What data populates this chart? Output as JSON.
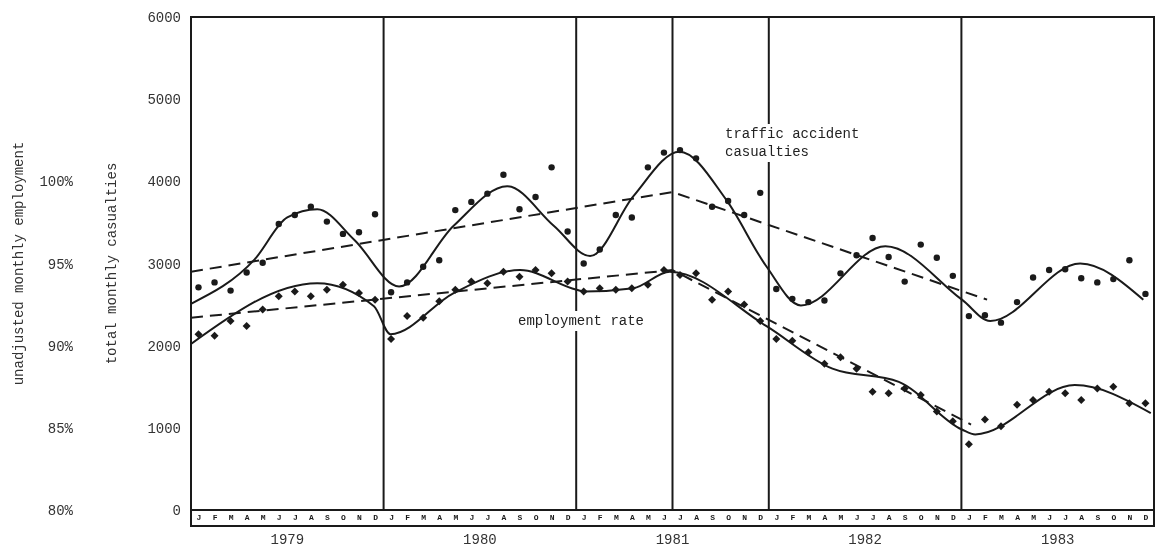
{
  "chart_data": {
    "type": "scatter",
    "ylabel": "total monthly casualties",
    "y2label": "unadjusted monthly employment",
    "x": [
      "1979-01-15",
      "1979-02-15",
      "1979-03-15",
      "1979-04-15",
      "1979-05-15",
      "1979-06-15",
      "1979-07-15",
      "1979-08-15",
      "1979-09-15",
      "1979-10-15",
      "1979-11-15",
      "1979-12-15",
      "1980-01-15",
      "1980-02-15",
      "1980-03-15",
      "1980-04-15",
      "1980-05-15",
      "1980-06-15",
      "1980-07-15",
      "1980-08-15",
      "1980-09-15",
      "1980-10-15",
      "1980-11-15",
      "1980-12-15",
      "1981-01-15",
      "1981-02-15",
      "1981-03-15",
      "1981-04-15",
      "1981-05-15",
      "1981-06-15",
      "1981-07-15",
      "1981-08-15",
      "1981-09-15",
      "1981-10-15",
      "1981-11-15",
      "1981-12-15",
      "1982-01-15",
      "1982-02-15",
      "1982-03-15",
      "1982-04-15",
      "1982-05-15",
      "1982-06-15",
      "1982-07-15",
      "1982-08-15",
      "1982-09-15",
      "1982-10-15",
      "1982-11-15",
      "1982-12-15",
      "1983-01-15",
      "1983-02-15",
      "1983-03-15",
      "1983-04-15",
      "1983-05-15",
      "1983-06-15",
      "1983-07-15",
      "1983-08-15",
      "1983-09-15",
      "1983-10-15",
      "1983-11-15",
      "1983-12-15"
    ],
    "xlim": [
      "1979-01-01",
      "1984-01-01"
    ],
    "xticks": [
      {
        "value": "1979-07-01",
        "label": "1979"
      },
      {
        "value": "1980-07-01",
        "label": "1980"
      },
      {
        "value": "1981-07-01",
        "label": "1981"
      },
      {
        "value": "1982-07-01",
        "label": "1982"
      },
      {
        "value": "1983-07-01",
        "label": "1983"
      }
    ],
    "ylim": [
      0,
      6000
    ],
    "yticks": [
      0,
      1000,
      2000,
      3000,
      4000,
      5000,
      6000
    ],
    "y2lim": [
      80,
      110
    ],
    "y2ticks": [
      {
        "value": 80,
        "label": "80%"
      },
      {
        "value": 85,
        "label": "85%"
      },
      {
        "value": 90,
        "label": "90%"
      },
      {
        "value": 95,
        "label": "95%"
      },
      {
        "value": 100,
        "label": "100%"
      }
    ],
    "series": [
      {
        "marker": "circle",
        "color": "#1a1a1a",
        "values": [
          2710,
          2770,
          2670,
          2890,
          3010,
          3480,
          3590,
          3690,
          3510,
          3360,
          3380,
          3600,
          2650,
          2770,
          2960,
          3040,
          3650,
          3750,
          3850,
          4080,
          3660,
          3810,
          4170,
          3390,
          3000,
          3170,
          3590,
          3560,
          4170,
          4350,
          4380,
          4280,
          3690,
          3760,
          3590,
          3860,
          2690,
          2570,
          2530,
          2550,
          2880,
          3100,
          3310,
          3080,
          2780,
          3230,
          3070,
          2850,
          2360,
          2370,
          2280,
          2530,
          2830,
          2920,
          2930,
          2820,
          2770,
          2810,
          3040,
          2630
        ]
      },
      {
        "type": "line",
        "line_style": "solid",
        "color": "#1a1a1a",
        "x": [
          "1979-01-01",
          "1979-04-30",
          "1979-07-01",
          "1979-08-27",
          "1979-11-06",
          "1980-01-30",
          "1980-05-12",
          "1980-08-22",
          "1980-11-19",
          "1981-01-27",
          "1981-04-18",
          "1981-07-14",
          "1981-10-11",
          "1981-12-26",
          "1982-03-01",
          "1982-08-09",
          "1983-01-02",
          "1983-02-25",
          "1983-08-13",
          "1983-12-11"
        ],
        "values": [
          2510,
          3050,
          3560,
          3660,
          3290,
          2720,
          3460,
          3940,
          3460,
          3090,
          3820,
          4360,
          3780,
          2970,
          2490,
          3210,
          2560,
          2300,
          3000,
          2560
        ]
      },
      {
        "type": "line",
        "line_style": "dashed",
        "color": "#1a1a1a",
        "x": [
          "1979-01-01",
          "1981-07-01",
          "1983-02-19"
        ],
        "values": [
          2900,
          3870,
          2560
        ]
      },
      {
        "marker": "diamond",
        "axis": "y2",
        "color": "#1a1a1a",
        "values": [
          90.7,
          90.6,
          91.5,
          91.2,
          92.2,
          93.0,
          93.3,
          93.0,
          93.4,
          93.7,
          93.2,
          92.8,
          90.4,
          91.8,
          91.7,
          92.7,
          93.4,
          93.9,
          93.8,
          94.5,
          94.2,
          94.6,
          94.4,
          93.9,
          93.3,
          93.5,
          93.4,
          93.5,
          93.7,
          94.6,
          94.3,
          94.4,
          92.8,
          93.3,
          92.5,
          91.5,
          90.4,
          90.3,
          89.6,
          88.9,
          89.3,
          88.6,
          87.2,
          87.1,
          87.4,
          87.0,
          86.0,
          85.4,
          84.0,
          85.5,
          85.1,
          86.4,
          86.7,
          87.2,
          87.1,
          86.7,
          87.4,
          87.5,
          86.5,
          86.5
        ]
      },
      {
        "type": "line",
        "line_style": "solid",
        "axis": "y2",
        "color": "#1a1a1a",
        "x": [
          "1979-01-01",
          "1979-08-27",
          "1979-12-13",
          "1980-01-14",
          "1980-05-12",
          "1980-09-16",
          "1981-01-02",
          "1981-01-17",
          "1981-04-18",
          "1981-06-26",
          "1981-12-26",
          "1982-04-30",
          "1982-09-04",
          "1983-01-02",
          "1983-01-27",
          "1983-08-03",
          "1983-12-25"
        ],
        "values": [
          90.1,
          93.8,
          92.4,
          90.7,
          93.2,
          94.6,
          93.4,
          93.3,
          93.5,
          94.5,
          91.2,
          88.6,
          87.8,
          84.9,
          84.6,
          87.6,
          85.9
        ]
      },
      {
        "type": "line",
        "line_style": "dashed",
        "axis": "y2",
        "color": "#1a1a1a",
        "x": [
          "1979-01-01",
          "1981-07-01",
          "1983-01-19"
        ],
        "values": [
          91.7,
          94.6,
          85.2
        ]
      }
    ],
    "ref_lines": [
      {
        "axis": "x",
        "value": "1980-01-01",
        "color": "#1a1a1a"
      },
      {
        "axis": "x",
        "value": "1981-01-01",
        "color": "#1a1a1a"
      },
      {
        "axis": "x",
        "value": "1981-07-01",
        "color": "#1a1a1a"
      },
      {
        "axis": "x",
        "value": "1982-01-01",
        "color": "#1a1a1a"
      },
      {
        "axis": "x",
        "value": "1983-01-01",
        "color": "#1a1a1a"
      }
    ],
    "annotations": [
      "traffic accident casualties",
      "employment rate",
      "J",
      "F",
      "M",
      "A",
      "M",
      "J",
      "J",
      "A",
      "S",
      "O",
      "N",
      "D",
      "J",
      "F",
      "M",
      "A",
      "M",
      "J",
      "J",
      "A",
      "S",
      "O",
      "N",
      "D",
      "J",
      "F",
      "M",
      "A",
      "M",
      "J",
      "J",
      "A",
      "S",
      "O",
      "N",
      "D",
      "J",
      "F",
      "M",
      "A",
      "M",
      "J",
      "J",
      "A",
      "S",
      "O",
      "N",
      "D",
      "J",
      "F",
      "M",
      "A",
      "M",
      "J",
      "J",
      "A",
      "S",
      "O",
      "N",
      "D"
    ]
  }
}
